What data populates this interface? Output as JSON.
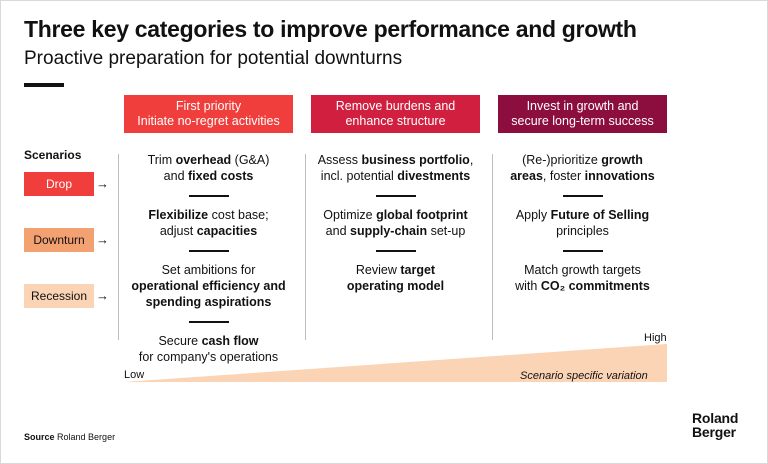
{
  "title": "Three key categories to improve performance and growth",
  "subtitle": "Proactive preparation for potential downturns",
  "columns": [
    {
      "heading": [
        "First priority",
        "Initiate no-regret activities"
      ],
      "color": "#ef3e3b",
      "items": [
        [
          {
            "t": "Trim "
          },
          {
            "t": "overhead",
            "b": true
          },
          {
            "t": " (G&A)"
          },
          {
            "br": true
          },
          {
            "t": "and "
          },
          {
            "t": "fixed costs",
            "b": true
          }
        ],
        [
          {
            "t": "Flexibilize",
            "b": true
          },
          {
            "t": " cost base;"
          },
          {
            "br": true
          },
          {
            "t": "adjust "
          },
          {
            "t": "capacities",
            "b": true
          }
        ],
        [
          {
            "t": "Set ambitions for"
          },
          {
            "br": true
          },
          {
            "t": "operational efficiency and",
            "b": true
          },
          {
            "br": true
          },
          {
            "t": "spending aspirations",
            "b": true
          }
        ],
        [
          {
            "t": "Secure "
          },
          {
            "t": "cash flow",
            "b": true
          },
          {
            "br": true
          },
          {
            "t": "for company's operations"
          }
        ]
      ]
    },
    {
      "heading": [
        "Remove burdens and",
        "enhance structure"
      ],
      "color": "#d01f3f",
      "items": [
        [
          {
            "t": "Assess "
          },
          {
            "t": "business portfolio",
            "b": true
          },
          {
            "t": ","
          },
          {
            "br": true
          },
          {
            "t": "incl. potential "
          },
          {
            "t": "divestments",
            "b": true
          }
        ],
        [
          {
            "t": "Optimize "
          },
          {
            "t": "global footprint",
            "b": true
          },
          {
            "br": true
          },
          {
            "t": "and "
          },
          {
            "t": "supply-chain",
            "b": true
          },
          {
            "t": " set-up"
          }
        ],
        [
          {
            "t": "Review "
          },
          {
            "t": "target",
            "b": true
          },
          {
            "br": true
          },
          {
            "t": "operating model",
            "b": true
          }
        ]
      ]
    },
    {
      "heading": [
        "Invest in growth and",
        "secure long-term success"
      ],
      "color": "#8c0e3f",
      "items": [
        [
          {
            "t": "(Re-)prioritize "
          },
          {
            "t": "growth",
            "b": true
          },
          {
            "br": true
          },
          {
            "t": "areas",
            "b": true
          },
          {
            "t": ", foster "
          },
          {
            "t": "innovations",
            "b": true
          }
        ],
        [
          {
            "t": "Apply "
          },
          {
            "t": "Future of Selling",
            "b": true
          },
          {
            "br": true
          },
          {
            "t": "principles"
          }
        ],
        [
          {
            "t": "Match growth targets"
          },
          {
            "br": true
          },
          {
            "t": "with "
          },
          {
            "t": "CO₂ commitments",
            "b": true
          }
        ]
      ]
    }
  ],
  "scenarios": {
    "label": "Scenarios",
    "items": [
      {
        "label": "Drop",
        "color": "#ef3e3b"
      },
      {
        "label": "Downturn",
        "color": "#f4a172"
      },
      {
        "label": "Recession",
        "color": "#fbd3b5"
      }
    ],
    "arrow_icon": "right-arrow-icon"
  },
  "scale": {
    "low": "Low",
    "high": "High",
    "caption": "Scenario specific variation",
    "color": "#fbd3b5"
  },
  "source": {
    "label": "Source",
    "text": "Roland Berger"
  },
  "logo": [
    "Roland",
    "Berger"
  ]
}
